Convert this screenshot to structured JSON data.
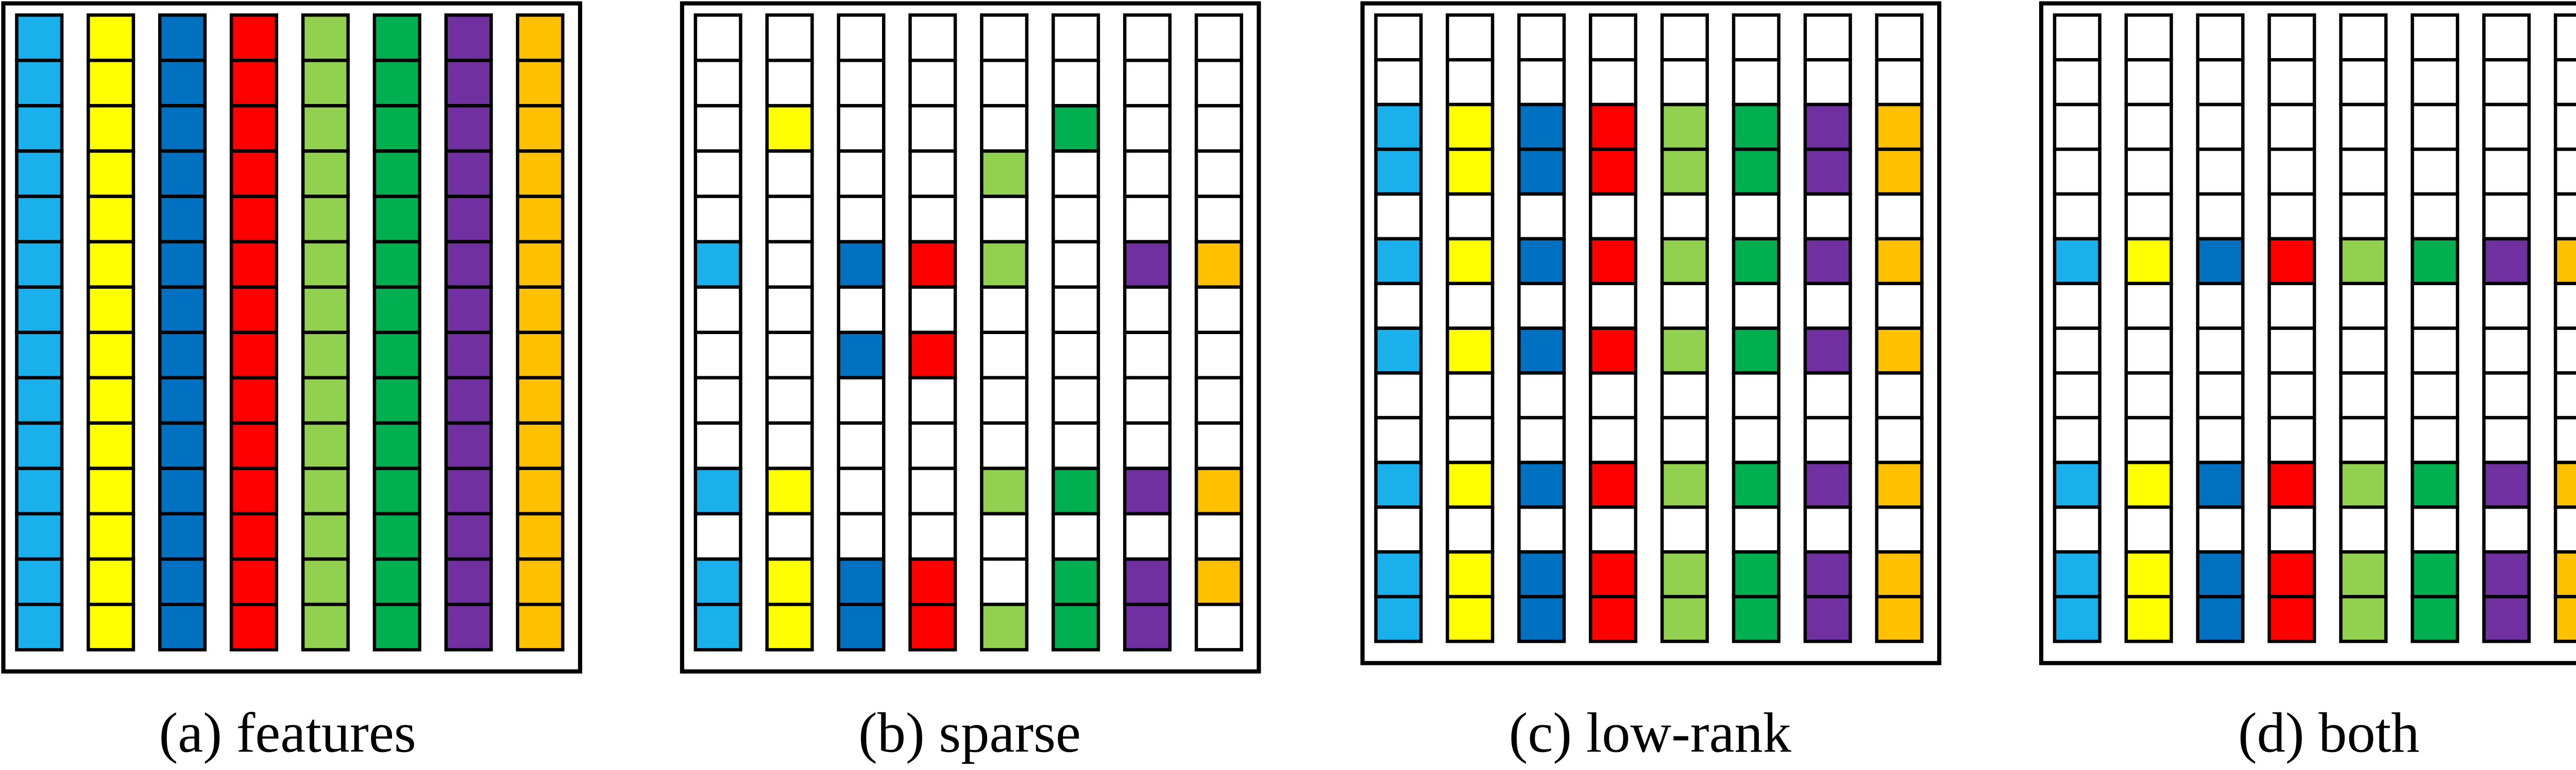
{
  "panels": [
    {
      "caption": "(a) features"
    },
    {
      "caption": "(b) sparse"
    },
    {
      "caption": "(c) low-rank"
    },
    {
      "caption": "(d) both"
    }
  ]
}
